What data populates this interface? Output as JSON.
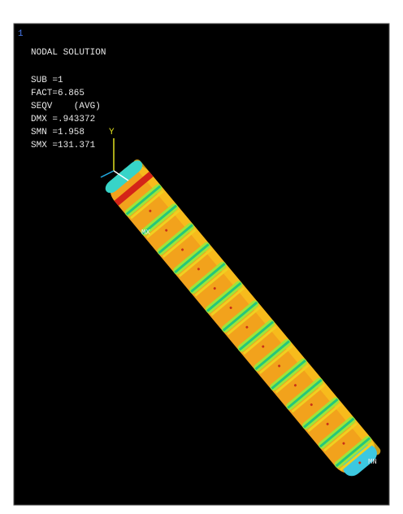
{
  "viewport_number": "1",
  "legend": {
    "title": "NODAL SOLUTION",
    "lines": [
      "SUB =1",
      "FACT=6.865",
      "SEQV    (AVG)",
      "DMX =.943372",
      "SMN =1.958",
      "SMX =131.371"
    ]
  },
  "labels": {
    "axis_y": "Y",
    "max": "MX",
    "min": "MN"
  }
}
